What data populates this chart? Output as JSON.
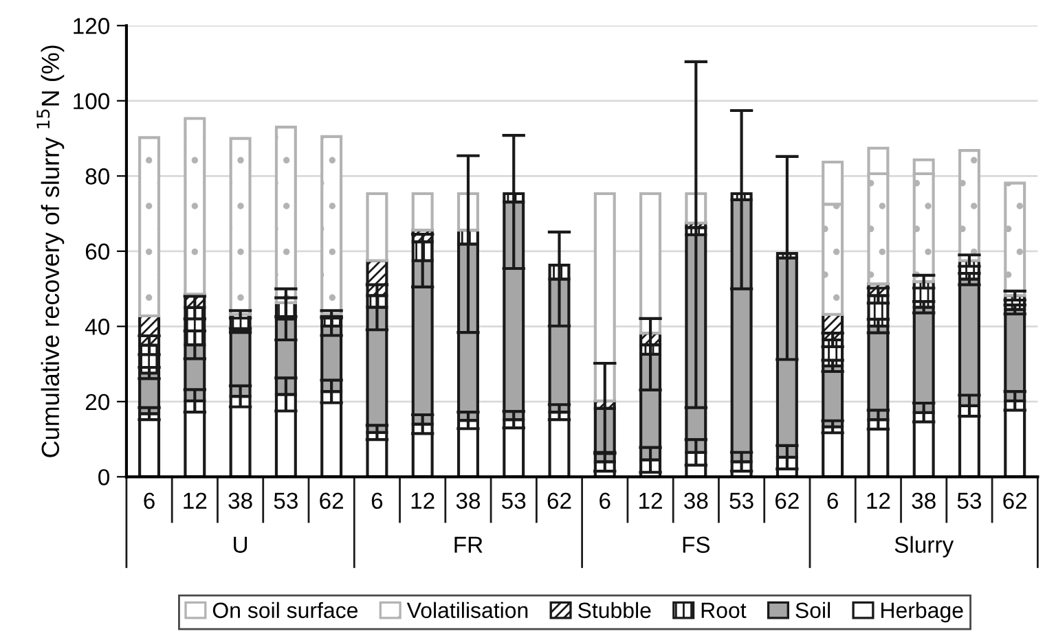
{
  "chart_data": {
    "type": "bar",
    "stacked": true,
    "ylabel": "Cumulative recovery of slurry $^{15}$N (%)",
    "categories": [
      "6",
      "12",
      "38",
      "53",
      "62",
      "6",
      "12",
      "38",
      "53",
      "62",
      "6",
      "12",
      "38",
      "53",
      "62",
      "6",
      "12",
      "38",
      "53",
      "62"
    ],
    "annotations": [
      "U",
      "FR",
      "FS",
      "Slurry"
    ],
    "ylim": [
      0,
      120
    ],
    "yticks": [
      0,
      20,
      40,
      60,
      80,
      100,
      120
    ],
    "grid": "y",
    "legend": "bottom",
    "series": [
      {
        "name": "Herbage",
        "color": "#ffffff",
        "values": [
          16.8,
          20.2,
          21.4,
          21.9,
          22.7,
          11.8,
          14,
          15,
          15.2,
          17.2,
          4,
          4.5,
          6.5,
          4,
          5.2,
          13.3,
          15.2,
          17.1,
          18.9,
          20.2
        ],
        "errors": [
          1.6,
          3,
          2.8,
          4.4,
          3,
          1.9,
          2.5,
          2.2,
          2.2,
          2,
          2.5,
          3.3,
          3.4,
          2.5,
          3.1,
          1.6,
          2.5,
          2.5,
          2.8,
          2.5
        ]
      },
      {
        "name": "Soil",
        "color": "#a6a6a6",
        "values": [
          10.8,
          14.9,
          17.5,
          20.1,
          17.4,
          33.3,
          43.5,
          46.9,
          57.9,
          35.4,
          14.2,
          28.1,
          57.9,
          69.7,
          53,
          16.2,
          24.9,
          28,
          33.7,
          24.3
        ],
        "errors": [
          1.5,
          3.7,
          0.5,
          5.6,
          2.5,
          6,
          7,
          23.5,
          17.7,
          12.5,
          12,
          9.5,
          46,
          23.7,
          27,
          1.5,
          1.8,
          1.5,
          1.5,
          1.2
        ]
      },
      {
        "name": "Root",
        "color": "#1a1a1a",
        "values": [
          7.4,
          9.9,
          4.3,
          4.3,
          3.1,
          3.1,
          5,
          3.7,
          2.2,
          3.7,
          null,
          2.5,
          1.9,
          1.6,
          1.2,
          6.9,
          8.1,
          6.8,
          4.9,
          3.7
        ],
        "errors": [
          2.5,
          3,
          1,
          3.7,
          1,
          null,
          null,
          null,
          null,
          null,
          null,
          null,
          null,
          null,
          null,
          1.8,
          2,
          1.7,
          1.5,
          1.2
        ]
      },
      {
        "name": "Stubble",
        "color": "#1a1a1a",
        "values": [
          7.8,
          3.6,
          null,
          null,
          null,
          9.3,
          3.1,
          null,
          null,
          null,
          2,
          3.1,
          1.2,
          null,
          null,
          6.8,
          3.1,
          null,
          null,
          null
        ]
      },
      {
        "name": "Volatilisation",
        "color": "#b3b3b3",
        "values": [
          47.4,
          46.7,
          46.8,
          46.7,
          47.3,
          null,
          null,
          null,
          null,
          null,
          null,
          null,
          null,
          null,
          null,
          29.3,
          29.3,
          28.7,
          29.3,
          29.9
        ]
      },
      {
        "name": "On soil surface",
        "color": "#b3b3b3",
        "values": [
          null,
          null,
          null,
          null,
          null,
          17.8,
          9.7,
          9.7,
          null,
          null,
          55.1,
          37.1,
          7.8,
          null,
          null,
          11.2,
          6.8,
          3.7,
          null,
          null
        ]
      }
    ]
  }
}
